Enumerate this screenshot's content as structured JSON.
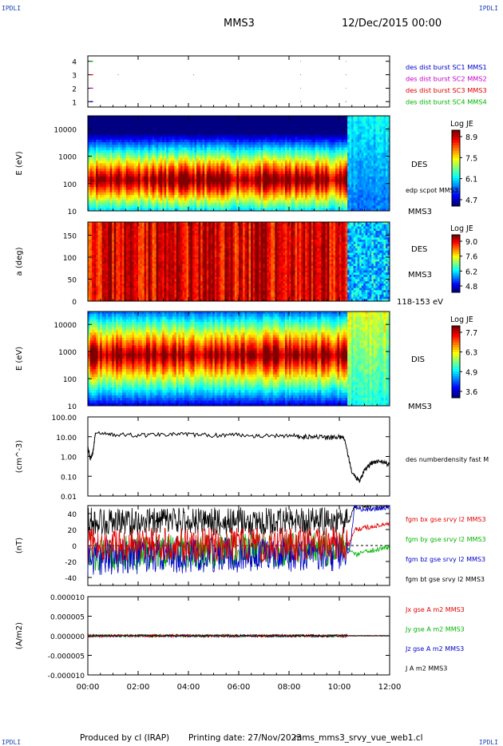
{
  "corner_labels": {
    "tl": "IPDLI",
    "tr": "IPDLI",
    "bl": "IPDLI",
    "br": "IPDLI"
  },
  "header": {
    "spacecraft": "MMS3",
    "date": "12/Dec/2015 00:00"
  },
  "footer": {
    "produced": "Produced by cl (IRAP)",
    "printing": "Printing date: 27/Nov/2023",
    "script": "mms_mms3_srvy_vue_web1.cl"
  },
  "colors": {
    "mms1": "#0000c8",
    "mms2": "#c800c8",
    "mms3": "#e00000",
    "mms4": "#00b400",
    "black": "#000000"
  },
  "time_axis": {
    "ticks": [
      "00:00",
      "02:00",
      "04:00",
      "06:00",
      "08:00",
      "10:00",
      "12:00"
    ],
    "range_hours": [
      0,
      12
    ]
  },
  "chart_data": [
    {
      "type": "scatter",
      "id": "burst",
      "yticks": [
        "1",
        "2",
        "3",
        "4"
      ],
      "ylim": [
        0.6,
        4.4
      ],
      "legend": [
        {
          "label": "des dist burst SC1 MMS1",
          "color": "#0000c8"
        },
        {
          "label": "des dist burst SC2 MMS2",
          "color": "#c800c8"
        },
        {
          "label": "des dist burst SC3 MMS3",
          "color": "#e00000"
        },
        {
          "label": "des dist burst SC4 MMS4",
          "color": "#00b400"
        }
      ],
      "series": [
        {
          "y": 1,
          "color": "#0000c8",
          "x": [
            0.08,
            0.12,
            0.16,
            8.45,
            10.25
          ]
        },
        {
          "y": 2,
          "color": "#c800c8",
          "x": [
            0.08,
            0.12,
            0.16,
            8.45,
            10.25
          ]
        },
        {
          "y": 3,
          "color": "#e00000",
          "x": [
            0.08,
            0.12,
            0.16,
            1.2,
            4.2,
            8.45,
            10.25
          ]
        },
        {
          "y": 4,
          "color": "#00b400",
          "x": [
            0.08,
            0.12,
            0.16,
            8.45,
            10.25
          ]
        }
      ]
    },
    {
      "type": "heatmap",
      "id": "des_energy",
      "ylabel": "E (eV)",
      "yscale": "log",
      "ylim": [
        10,
        30000
      ],
      "yticks": [
        "10",
        "100",
        "1000",
        "10000"
      ],
      "label": "DES",
      "sc_label": "MMS3",
      "overlay_label": "edp scpot MMS3",
      "colorbar": {
        "title": "Log JE",
        "ticks": [
          "8.9",
          "7.5",
          "6.1",
          "4.7"
        ]
      }
    },
    {
      "type": "heatmap",
      "id": "des_pitch",
      "ylabel": "a (deg)",
      "ylim": [
        0,
        180
      ],
      "yticks": [
        "0",
        "50",
        "100",
        "150"
      ],
      "label": "DES",
      "sc_label": "MMS3",
      "range_label": "118-153 eV",
      "colorbar": {
        "title": "Log JE",
        "ticks": [
          "9.0",
          "7.6",
          "6.2",
          "4.8"
        ]
      }
    },
    {
      "type": "heatmap",
      "id": "dis_energy",
      "ylabel": "E (eV)",
      "yscale": "log",
      "ylim": [
        10,
        30000
      ],
      "yticks": [
        "10",
        "100",
        "1000",
        "10000"
      ],
      "label": "DIS",
      "sc_label": "MMS3",
      "colorbar": {
        "title": "Log JE",
        "ticks": [
          "7.7",
          "6.3",
          "4.9",
          "3.6"
        ]
      }
    },
    {
      "type": "line",
      "id": "density",
      "ylabel": "(cm^-3)",
      "yscale": "log",
      "ylim": [
        0.01,
        100
      ],
      "yticks": [
        "0.01",
        "0.10",
        "1.00",
        "10.00",
        "100.00"
      ],
      "series": [
        {
          "name": "des numberdensity fast M",
          "color": "#000000",
          "x": [
            0,
            0.1,
            0.2,
            0.3,
            1,
            2,
            3,
            4,
            5,
            6,
            7,
            8,
            8.5,
            9,
            9.5,
            10,
            10.2,
            10.5,
            10.8,
            11,
            11.3,
            11.6,
            12
          ],
          "y": [
            3,
            0.8,
            1.5,
            15,
            13,
            12,
            14,
            13,
            12,
            13,
            11,
            12,
            10,
            11,
            9,
            10,
            8,
            0.15,
            0.06,
            0.2,
            0.5,
            0.6,
            0.4
          ]
        }
      ]
    },
    {
      "type": "line",
      "id": "bfield",
      "ylabel": "(nT)",
      "ylim": [
        -50,
        50
      ],
      "yticks": [
        "-40",
        "-20",
        "0",
        "20",
        "40"
      ],
      "series": [
        {
          "name": "fgm bx gse srvy l2 MMS3",
          "color": "#e00000",
          "x": [
            0,
            10.4,
            10.6,
            11,
            11.5,
            12
          ],
          "y": [
            0,
            2,
            20,
            22,
            25,
            28
          ]
        },
        {
          "name": "fgm by gse srvy l2 MMS3",
          "color": "#00b400",
          "x": [
            0,
            10.4,
            10.6,
            11,
            11.5,
            12
          ],
          "y": [
            -10,
            -5,
            -12,
            -8,
            -5,
            -2
          ]
        },
        {
          "name": "fgm bz gse srvy l2 MMS3",
          "color": "#0000c8",
          "x": [
            0,
            10.4,
            10.6,
            11,
            11.5,
            12
          ],
          "y": [
            -15,
            -10,
            48,
            45,
            46,
            48
          ]
        },
        {
          "name": "fgm bt gse srvy l2 MMS3",
          "color": "#000000",
          "x": [
            0,
            10.4,
            10.6,
            11,
            11.5,
            12
          ],
          "y": [
            30,
            30,
            50,
            50,
            50,
            50
          ]
        }
      ]
    },
    {
      "type": "line",
      "id": "current",
      "ylabel": "(A/m2)",
      "ylim": [
        -0.0001,
        0.0001
      ],
      "yticks": [
        "-0.000010",
        "-0.000005",
        "0.000000",
        "0.000005",
        "0.000010"
      ],
      "series": [
        {
          "name": "Jx gse A m2 MMS3",
          "color": "#e00000",
          "x": [
            0,
            12
          ],
          "y": [
            0,
            0
          ]
        },
        {
          "name": "Jy gse A m2 MMS3",
          "color": "#00b400",
          "x": [
            0,
            12
          ],
          "y": [
            0,
            0
          ]
        },
        {
          "name": "Jz gse A m2 MMS3",
          "color": "#0000c8",
          "x": [
            0,
            12
          ],
          "y": [
            0,
            0
          ]
        },
        {
          "name": "J A m2 MMS3",
          "color": "#000000",
          "x": [
            0,
            12
          ],
          "y": [
            0,
            0
          ]
        }
      ]
    }
  ]
}
